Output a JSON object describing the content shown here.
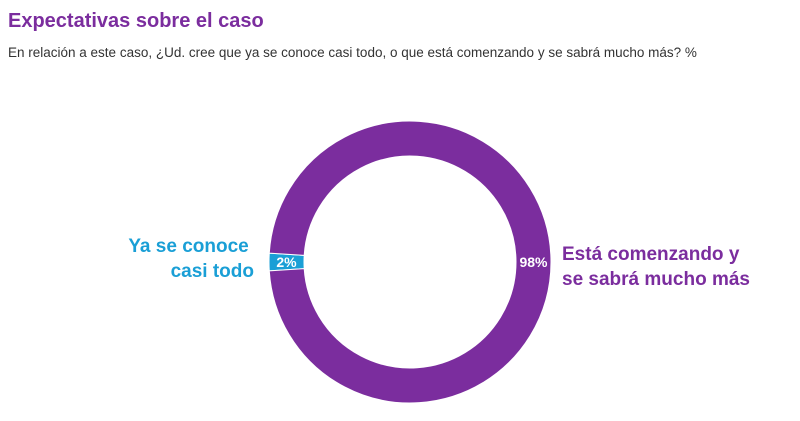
{
  "header": {
    "title": "Expectativas sobre el caso",
    "subtitle": "En relación a este caso, ¿Ud. cree que ya se conoce casi todo, o que está comenzando y se sabrá mucho más? %"
  },
  "chart_data": {
    "type": "pie",
    "donut": true,
    "slices": [
      {
        "label_lines": [
          "Ya se conoce",
          "casi todo"
        ],
        "value": 2,
        "value_label": "2%",
        "color": "#1a9fd6"
      },
      {
        "label_lines": [
          "Está comenzando y",
          "se sabrá mucho más"
        ],
        "value": 98,
        "value_label": "98%",
        "color": "#7b2d9e"
      }
    ]
  }
}
